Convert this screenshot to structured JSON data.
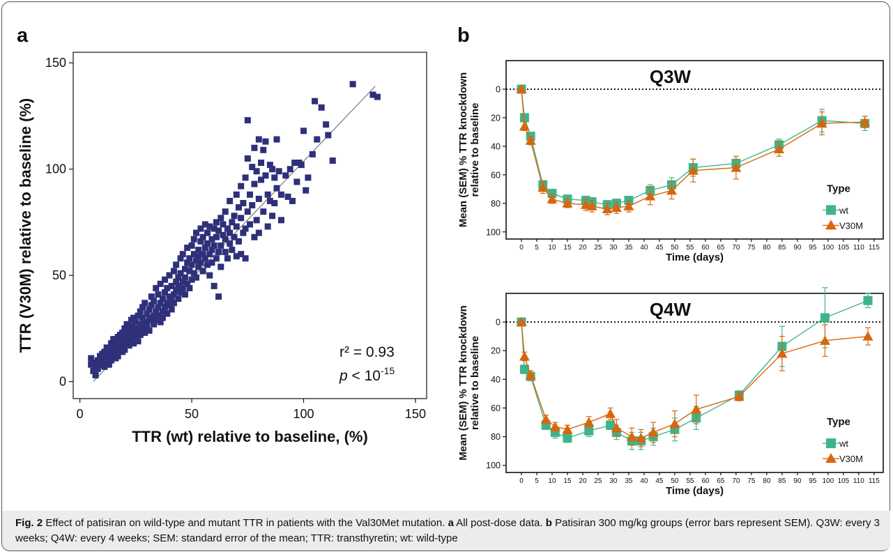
{
  "panel_labels": {
    "a": "a",
    "b": "b"
  },
  "colors": {
    "scatter_marker": "#2e3079",
    "wt": "#3fb489",
    "v30m": "#d8660f",
    "axis": "#111111",
    "fit_line": "#777777"
  },
  "scatter_annotation": {
    "r2": "r² = 0.93",
    "p_prefix": "p",
    "p_rest": " < 10",
    "p_exp": "-15"
  },
  "caption": {
    "fig_label": "Fig. 2",
    "text1": " Effect of patisiran on wild-type and mutant TTR in patients with the Val30Met mutation. ",
    "a": "a",
    "text2": " All post-dose data. ",
    "b": "b",
    "text3": " Patisiran 300 mg/kg groups (error bars represent SEM). Q3W: every 3 weeks; Q4W: every 4 weeks; SEM: standard error of the mean; TTR: transthyretin; wt: wild-type"
  },
  "chart_data": [
    {
      "type": "scatter",
      "title": "",
      "xlabel": "TTR (wt) relative to baseline, (%)",
      "ylabel": "TTR (V30M) relative to baseline (%)",
      "xlim": [
        -3,
        155
      ],
      "ylim": [
        -8,
        155
      ],
      "xticks": [
        0,
        50,
        100,
        150
      ],
      "yticks": [
        0,
        50,
        100,
        150
      ],
      "fit_line": [
        [
          6,
          0
        ],
        [
          132,
          139
        ]
      ],
      "points": [
        [
          5,
          11
        ],
        [
          5,
          8
        ],
        [
          6,
          5
        ],
        [
          6,
          9
        ],
        [
          7,
          7
        ],
        [
          7,
          3
        ],
        [
          8,
          10
        ],
        [
          8,
          6
        ],
        [
          9,
          12
        ],
        [
          9,
          8
        ],
        [
          10,
          11
        ],
        [
          10,
          9
        ],
        [
          10,
          13
        ],
        [
          11,
          7
        ],
        [
          11,
          10
        ],
        [
          11,
          14
        ],
        [
          12,
          9
        ],
        [
          12,
          12
        ],
        [
          12,
          16
        ],
        [
          13,
          11
        ],
        [
          13,
          13
        ],
        [
          13,
          8
        ],
        [
          14,
          15
        ],
        [
          14,
          18
        ],
        [
          14,
          10
        ],
        [
          14,
          12
        ],
        [
          15,
          13
        ],
        [
          15,
          20
        ],
        [
          15,
          16
        ],
        [
          16,
          11
        ],
        [
          16,
          17
        ],
        [
          16,
          19
        ],
        [
          16,
          14
        ],
        [
          17,
          21
        ],
        [
          17,
          15
        ],
        [
          17,
          18
        ],
        [
          17,
          12
        ],
        [
          18,
          16
        ],
        [
          18,
          22
        ],
        [
          18,
          19
        ],
        [
          19,
          14
        ],
        [
          19,
          23
        ],
        [
          19,
          17
        ],
        [
          20,
          20
        ],
        [
          20,
          25
        ],
        [
          20,
          18
        ],
        [
          20,
          15
        ],
        [
          21,
          22
        ],
        [
          21,
          19
        ],
        [
          21,
          27
        ],
        [
          22,
          17
        ],
        [
          22,
          24
        ],
        [
          22,
          20
        ],
        [
          23,
          26
        ],
        [
          23,
          21
        ],
        [
          23,
          29
        ],
        [
          24,
          18
        ],
        [
          24,
          23
        ],
        [
          24,
          30
        ],
        [
          25,
          25
        ],
        [
          25,
          21
        ],
        [
          25,
          28
        ],
        [
          26,
          24
        ],
        [
          26,
          31
        ],
        [
          26,
          19
        ],
        [
          27,
          27
        ],
        [
          27,
          22
        ],
        [
          27,
          33
        ],
        [
          28,
          25
        ],
        [
          28,
          30
        ],
        [
          28,
          35
        ],
        [
          29,
          23
        ],
        [
          29,
          28
        ],
        [
          29,
          37
        ],
        [
          30,
          32
        ],
        [
          30,
          27
        ],
        [
          30,
          26
        ],
        [
          31,
          34
        ],
        [
          31,
          30
        ],
        [
          31,
          24
        ],
        [
          32,
          29
        ],
        [
          32,
          36
        ],
        [
          32,
          40
        ],
        [
          33,
          31
        ],
        [
          33,
          27
        ],
        [
          33,
          38
        ],
        [
          34,
          33
        ],
        [
          34,
          29
        ],
        [
          34,
          44
        ],
        [
          35,
          35
        ],
        [
          35,
          31
        ],
        [
          35,
          41
        ],
        [
          36,
          28
        ],
        [
          36,
          37
        ],
        [
          36,
          46
        ],
        [
          37,
          33
        ],
        [
          37,
          39
        ],
        [
          37,
          30
        ],
        [
          38,
          42
        ],
        [
          38,
          35
        ],
        [
          38,
          48
        ],
        [
          39,
          37
        ],
        [
          39,
          32
        ],
        [
          39,
          44
        ],
        [
          40,
          40
        ],
        [
          40,
          36
        ],
        [
          40,
          50
        ],
        [
          41,
          34
        ],
        [
          41,
          45
        ],
        [
          41,
          39
        ],
        [
          42,
          52
        ],
        [
          42,
          41
        ],
        [
          42,
          37
        ],
        [
          43,
          47
        ],
        [
          43,
          43
        ],
        [
          43,
          55
        ],
        [
          44,
          39
        ],
        [
          44,
          49
        ],
        [
          44,
          45
        ],
        [
          45,
          58
        ],
        [
          45,
          42
        ],
        [
          45,
          51
        ],
        [
          46,
          47
        ],
        [
          46,
          60
        ],
        [
          46,
          44
        ],
        [
          47,
          53
        ],
        [
          47,
          49
        ],
        [
          47,
          41
        ],
        [
          48,
          56
        ],
        [
          48,
          63
        ],
        [
          48,
          46
        ],
        [
          49,
          52
        ],
        [
          49,
          58
        ],
        [
          49,
          44
        ],
        [
          50,
          55
        ],
        [
          50,
          64
        ],
        [
          50,
          48
        ],
        [
          51,
          60
        ],
        [
          51,
          51
        ],
        [
          51,
          67
        ],
        [
          52,
          57
        ],
        [
          52,
          49
        ],
        [
          52,
          70
        ],
        [
          53,
          62
        ],
        [
          53,
          54
        ],
        [
          53,
          59
        ],
        [
          54,
          66
        ],
        [
          54,
          56
        ],
        [
          54,
          72
        ],
        [
          55,
          60
        ],
        [
          55,
          52
        ],
        [
          55,
          68
        ],
        [
          56,
          63
        ],
        [
          56,
          58
        ],
        [
          56,
          74
        ],
        [
          57,
          65
        ],
        [
          57,
          55
        ],
        [
          57,
          70
        ],
        [
          58,
          60
        ],
        [
          58,
          73
        ],
        [
          58,
          50
        ],
        [
          59,
          67
        ],
        [
          59,
          56
        ],
        [
          59,
          62
        ],
        [
          60,
          72
        ],
        [
          60,
          64
        ],
        [
          60,
          45
        ],
        [
          61,
          75
        ],
        [
          61,
          58
        ],
        [
          61,
          68
        ],
        [
          62,
          61
        ],
        [
          62,
          71
        ],
        [
          62,
          40
        ],
        [
          63,
          77
        ],
        [
          63,
          64
        ],
        [
          63,
          54
        ],
        [
          64,
          69
        ],
        [
          64,
          74
        ],
        [
          65,
          80
        ],
        [
          65,
          61
        ],
        [
          65,
          67
        ],
        [
          66,
          72
        ],
        [
          66,
          58
        ],
        [
          67,
          85
        ],
        [
          67,
          70
        ],
        [
          67,
          65
        ],
        [
          68,
          75
        ],
        [
          68,
          62
        ],
        [
          69,
          78
        ],
        [
          69,
          68
        ],
        [
          70,
          73
        ],
        [
          70,
          88
        ],
        [
          70,
          59
        ],
        [
          71,
          82
        ],
        [
          71,
          66
        ],
        [
          72,
          77
        ],
        [
          72,
          92
        ],
        [
          72,
          60
        ],
        [
          73,
          84
        ],
        [
          73,
          70
        ],
        [
          74,
          96
        ],
        [
          74,
          72
        ],
        [
          74,
          58
        ],
        [
          75,
          123
        ],
        [
          75,
          80
        ],
        [
          75,
          105
        ],
        [
          76,
          74
        ],
        [
          76,
          88
        ],
        [
          77,
          101
        ],
        [
          77,
          83
        ],
        [
          78,
          110
        ],
        [
          78,
          93
        ],
        [
          78,
          68
        ],
        [
          79,
          99
        ],
        [
          79,
          76
        ],
        [
          80,
          114
        ],
        [
          80,
          86
        ],
        [
          80,
          70
        ],
        [
          81,
          103
        ],
        [
          81,
          95
        ],
        [
          82,
          109
        ],
        [
          82,
          80
        ],
        [
          83,
          97
        ],
        [
          83,
          113
        ],
        [
          84,
          88
        ],
        [
          84,
          73
        ],
        [
          85,
          102
        ],
        [
          85,
          85
        ],
        [
          86,
          100
        ],
        [
          86,
          78
        ],
        [
          87,
          96
        ],
        [
          87,
          84
        ],
        [
          88,
          114
        ],
        [
          88,
          91
        ],
        [
          89,
          99
        ],
        [
          90,
          76
        ],
        [
          90,
          88
        ],
        [
          92,
          97
        ],
        [
          93,
          87
        ],
        [
          94,
          100
        ],
        [
          95,
          85
        ],
        [
          96,
          103
        ],
        [
          97,
          94
        ],
        [
          98,
          103
        ],
        [
          99,
          102
        ],
        [
          100,
          118
        ],
        [
          101,
          90
        ],
        [
          102,
          96
        ],
        [
          104,
          107
        ],
        [
          105,
          132
        ],
        [
          106,
          114
        ],
        [
          108,
          129
        ],
        [
          110,
          121
        ],
        [
          111,
          116
        ],
        [
          113,
          104
        ],
        [
          122,
          140
        ],
        [
          131,
          135
        ],
        [
          133,
          134
        ]
      ]
    },
    {
      "type": "line",
      "title": "Q3W",
      "xlabel": "Time (days)",
      "ylabel": "Mean (SEM) % TTR knockdown\nrelative to baseline",
      "ylim": [
        -20,
        105
      ],
      "yticks": [
        0,
        20,
        40,
        60,
        80,
        100
      ],
      "xlim": [
        -5,
        118
      ],
      "xticks": [
        0,
        5,
        10,
        15,
        20,
        25,
        30,
        35,
        40,
        45,
        50,
        55,
        60,
        65,
        70,
        75,
        80,
        85,
        90,
        95,
        100,
        105,
        110,
        115
      ],
      "legend_title": "Type",
      "legend": [
        "wt",
        "V30M"
      ],
      "series": [
        {
          "name": "wt",
          "marker": "square",
          "x": [
            0,
            1,
            3,
            7,
            10,
            15,
            21,
            23,
            28,
            31,
            35,
            42,
            49,
            56,
            70,
            84,
            98,
            112
          ],
          "y": [
            0,
            20,
            33,
            67,
            73,
            77,
            78,
            79,
            81,
            80,
            78,
            71,
            67,
            55,
            52,
            39,
            22,
            24
          ],
          "err": [
            0,
            1,
            2,
            3,
            2,
            2,
            3,
            3,
            3,
            3,
            3,
            4,
            5,
            6,
            3,
            4,
            8,
            5
          ]
        },
        {
          "name": "V30M",
          "marker": "triangle",
          "x": [
            0,
            1,
            3,
            7,
            10,
            15,
            21,
            23,
            28,
            31,
            35,
            42,
            49,
            56,
            70,
            84,
            98,
            112
          ],
          "y": [
            0,
            26,
            36,
            69,
            77,
            80,
            81,
            82,
            84,
            83,
            82,
            75,
            71,
            57,
            55,
            42,
            24,
            23
          ],
          "err": [
            0,
            3,
            3,
            4,
            3,
            3,
            4,
            4,
            4,
            4,
            4,
            6,
            6,
            8,
            8,
            5,
            8,
            4
          ]
        }
      ]
    },
    {
      "type": "line",
      "title": "Q4W",
      "xlabel": "Time (days)",
      "ylabel": "Mean (SEM) % TTR knockdown\nrelative to baseline",
      "ylim": [
        -20,
        105
      ],
      "yticks": [
        0,
        20,
        40,
        60,
        80,
        100
      ],
      "xlim": [
        -5,
        118
      ],
      "xticks": [
        0,
        5,
        10,
        15,
        20,
        25,
        30,
        35,
        40,
        45,
        50,
        55,
        60,
        65,
        70,
        75,
        80,
        85,
        90,
        95,
        100,
        105,
        110,
        115
      ],
      "legend_title": "Type",
      "legend": [
        "wt",
        "V30M"
      ],
      "series": [
        {
          "name": "wt",
          "marker": "square",
          "x": [
            0,
            1,
            3,
            8,
            11,
            15,
            22,
            29,
            31,
            36,
            39,
            43,
            50,
            57,
            71,
            85,
            99,
            113
          ],
          "y": [
            0,
            33,
            38,
            72,
            77,
            81,
            76,
            72,
            77,
            83,
            83,
            80,
            75,
            67,
            51,
            17,
            -3,
            -15
          ],
          "err": [
            0,
            3,
            3,
            3,
            4,
            3,
            4,
            3,
            5,
            6,
            6,
            6,
            8,
            8,
            3,
            14,
            21,
            5
          ]
        },
        {
          "name": "V30M",
          "marker": "triangle",
          "x": [
            0,
            1,
            3,
            8,
            11,
            15,
            22,
            29,
            31,
            36,
            39,
            43,
            50,
            57,
            71,
            85,
            99,
            113
          ],
          "y": [
            0,
            24,
            37,
            68,
            73,
            75,
            70,
            64,
            74,
            80,
            81,
            77,
            71,
            61,
            52,
            22,
            13,
            10
          ],
          "err": [
            0,
            3,
            3,
            3,
            3,
            3,
            4,
            4,
            6,
            6,
            6,
            7,
            9,
            10,
            3,
            12,
            11,
            6
          ]
        }
      ]
    }
  ]
}
